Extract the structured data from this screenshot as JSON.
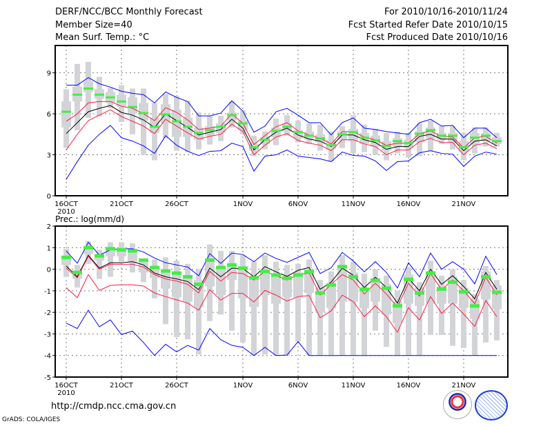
{
  "header": {
    "title": "DERF/NCC/BCC Monthly Forecast",
    "member_size": "Member Size=40",
    "variable": "Mean Surf. Temp.: °C",
    "period": "For 2010/10/16-2010/11/24",
    "fcst_started": "Fcst Started Refer Date 2010/10/15",
    "fcst_produced": "Fcst Produced Date 2010/10/16"
  },
  "footer": {
    "url": "http://cmdp.ncc.cma.gov.cn",
    "grads": "GrADS: COLA/IGES",
    "logos": [
      "BCC",
      "NCC"
    ]
  },
  "colors": {
    "mean": "#000000",
    "spread": "#ff1a40",
    "extreme": "#0000ff",
    "marker": "#44ee44",
    "box": "#d3d4d8"
  },
  "chart_data": [
    {
      "type": "line",
      "title": "Mean Surf. Temp.: °C",
      "ylabel": "°C",
      "ylim": [
        0,
        11
      ],
      "yticks": [
        "0",
        "3",
        "6",
        "9"
      ],
      "ytick_values": [
        0,
        3,
        6,
        9
      ],
      "xtick_labels": [
        "16OCT",
        "21OCT",
        "26OCT",
        "1NOV",
        "6NOV",
        "11NOV",
        "16NOV",
        "21NOV"
      ],
      "xtick_days": [
        0,
        5,
        10,
        16,
        21,
        26,
        31,
        36
      ],
      "year_label": "2010",
      "days": 40,
      "series": [
        {
          "name": "ensemble-mean",
          "color": "#000000",
          "values": [
            4.55,
            5.35,
            6.15,
            6.4,
            6.6,
            6.1,
            5.9,
            5.55,
            5.0,
            6.0,
            5.5,
            5.0,
            4.45,
            4.65,
            4.85,
            5.6,
            4.95,
            3.35,
            4.1,
            4.65,
            4.95,
            4.45,
            4.15,
            4.0,
            3.6,
            4.45,
            4.45,
            4.1,
            3.9,
            3.4,
            3.6,
            3.6,
            4.35,
            4.5,
            4.15,
            4.15,
            3.3,
            4.0,
            4.1,
            3.65
          ]
        },
        {
          "name": "spread-upper",
          "color": "#ff1a40",
          "values": [
            5.45,
            6.0,
            6.8,
            6.9,
            6.9,
            6.55,
            6.4,
            6.0,
            5.5,
            6.45,
            6.1,
            5.55,
            4.85,
            4.95,
            5.1,
            6.0,
            5.3,
            3.75,
            4.4,
            5.05,
            5.35,
            4.75,
            4.45,
            4.2,
            3.8,
            4.7,
            4.7,
            4.3,
            4.1,
            3.7,
            3.85,
            3.85,
            4.55,
            4.75,
            4.35,
            4.3,
            3.5,
            4.25,
            4.35,
            3.85
          ]
        },
        {
          "name": "spread-lower",
          "color": "#ff1a40",
          "values": [
            3.35,
            4.5,
            5.5,
            5.9,
            6.3,
            5.8,
            5.45,
            5.1,
            4.55,
            5.6,
            5.1,
            4.6,
            4.15,
            4.35,
            4.5,
            5.25,
            4.7,
            3.0,
            3.7,
            4.3,
            4.55,
            4.05,
            3.85,
            3.7,
            3.3,
            4.1,
            4.1,
            3.8,
            3.6,
            3.0,
            3.35,
            3.35,
            3.95,
            4.2,
            3.9,
            3.9,
            3.0,
            3.7,
            3.85,
            3.45
          ]
        },
        {
          "name": "max",
          "color": "#0000ff",
          "values": [
            8.1,
            8.1,
            8.65,
            8.2,
            7.95,
            7.65,
            7.5,
            7.4,
            6.8,
            7.6,
            7.2,
            6.9,
            5.85,
            5.85,
            6.05,
            6.95,
            6.2,
            4.65,
            5.1,
            6.15,
            6.4,
            5.9,
            5.35,
            5.35,
            4.45,
            5.35,
            5.7,
            4.95,
            4.85,
            4.7,
            4.6,
            4.5,
            5.35,
            5.6,
            5.1,
            5.15,
            4.25,
            4.95,
            4.95,
            4.25
          ]
        },
        {
          "name": "min",
          "color": "#0000ff",
          "values": [
            1.2,
            2.5,
            3.7,
            4.5,
            5.15,
            4.25,
            4.0,
            3.65,
            3.1,
            4.4,
            3.7,
            3.25,
            2.95,
            3.25,
            3.3,
            3.85,
            3.6,
            1.8,
            2.9,
            3.0,
            3.35,
            2.9,
            2.8,
            2.7,
            2.5,
            3.2,
            2.95,
            2.9,
            2.55,
            1.85,
            2.5,
            2.55,
            3.15,
            3.3,
            3.1,
            3.05,
            2.15,
            2.9,
            3.2,
            3.05
          ]
        }
      ],
      "markers": [
        6.15,
        7.4,
        7.85,
        7.4,
        7.2,
        6.9,
        6.5,
        6.05,
        5.05,
        5.95,
        5.45,
        5.05,
        4.6,
        4.8,
        5.05,
        5.9,
        5.3,
        3.55,
        4.1,
        4.75,
        5.05,
        4.65,
        4.4,
        4.2,
        3.7,
        4.5,
        4.65,
        4.25,
        4.05,
        3.65,
        4.0,
        3.85,
        4.55,
        4.8,
        4.4,
        4.4,
        3.55,
        4.25,
        4.4,
        4.0
      ],
      "boxes": {
        "outer_min": [
          3.5,
          4.8,
          5.7,
          5.8,
          6.4,
          5.4,
          4.5,
          3.0,
          2.6,
          4.2,
          3.3,
          3.2,
          3.4,
          3.75,
          4.0,
          5.0,
          4.5,
          2.9,
          3.4,
          3.7,
          4.4,
          3.9,
          3.8,
          3.3,
          2.5,
          3.5,
          3.1,
          3.2,
          3.0,
          2.6,
          3.1,
          2.8,
          2.9,
          3.3,
          3.8,
          3.4,
          2.6,
          3.1,
          3.6,
          3.6
        ],
        "outer_max": [
          7.8,
          9.65,
          9.8,
          8.7,
          7.9,
          8.1,
          7.85,
          7.85,
          6.8,
          7.45,
          7.3,
          6.95,
          6.1,
          5.85,
          5.85,
          6.9,
          6.25,
          4.4,
          4.7,
          5.65,
          5.9,
          5.5,
          5.3,
          5.2,
          4.7,
          5.1,
          5.9,
          5.2,
          4.9,
          4.6,
          4.7,
          4.6,
          5.3,
          5.5,
          5.1,
          5.1,
          4.6,
          5.0,
          5.0,
          4.6
        ],
        "inner_min": [
          5.0,
          6.9,
          7.6,
          7.1,
          6.8,
          6.5,
          6.0,
          5.5,
          4.6,
          5.3,
          4.3,
          4.3,
          4.1,
          4.4,
          4.6,
          5.5,
          4.8,
          3.3,
          3.8,
          4.3,
          4.7,
          4.2,
          4.1,
          3.9,
          3.4,
          4.1,
          4.0,
          3.8,
          3.6,
          3.3,
          3.6,
          3.5,
          3.9,
          4.2,
          4.1,
          3.9,
          3.2,
          3.8,
          4.0,
          3.8
        ],
        "inner_max": [
          6.9,
          8.0,
          8.4,
          7.8,
          7.6,
          7.4,
          7.2,
          6.8,
          5.7,
          6.7,
          6.3,
          5.7,
          5.0,
          5.1,
          5.3,
          6.1,
          5.5,
          3.8,
          4.3,
          5.0,
          5.3,
          4.8,
          4.7,
          4.5,
          4.1,
          4.7,
          4.9,
          4.6,
          4.4,
          4.0,
          4.2,
          4.1,
          4.7,
          5.0,
          4.6,
          4.6,
          4.0,
          4.6,
          4.6,
          4.3
        ]
      }
    },
    {
      "type": "line",
      "title": "Prec.: log(mm/d)",
      "ylabel": "log(mm/d)",
      "ylim": [
        -5,
        2
      ],
      "yticks": [
        "-5",
        "-4",
        "-3",
        "-2",
        "-1",
        "0",
        "1",
        "2"
      ],
      "ytick_values": [
        -5,
        -4,
        -3,
        -2,
        -1,
        0,
        1,
        2
      ],
      "xtick_labels": [
        "16OCT",
        "21OCT",
        "26OCT",
        "1NOV",
        "6NOV",
        "11NOV",
        "16NOV",
        "21NOV"
      ],
      "xtick_days": [
        0,
        5,
        10,
        16,
        21,
        26,
        31,
        36
      ],
      "year_label": "2010",
      "days": 40,
      "series": [
        {
          "name": "ensemble-mean",
          "color": "#000000",
          "values": [
            0.15,
            -0.35,
            0.65,
            0.05,
            0.3,
            0.3,
            0.35,
            0.2,
            -0.18,
            -0.35,
            -0.45,
            -0.57,
            -0.95,
            0.05,
            -0.35,
            0.05,
            0.03,
            -0.35,
            0.12,
            -0.12,
            -0.33,
            -0.05,
            0.08,
            -0.93,
            -0.6,
            0.05,
            -0.28,
            -0.85,
            -0.37,
            -0.85,
            -1.57,
            -0.42,
            -1.0,
            0.0,
            -0.7,
            -0.3,
            -0.8,
            -1.37,
            -0.15,
            -0.93
          ]
        },
        {
          "name": "spread-upper",
          "color": "#ff1a40",
          "values": [
            0.05,
            -0.4,
            0.6,
            0.0,
            0.23,
            0.23,
            0.23,
            0.1,
            -0.25,
            -0.45,
            -0.55,
            -0.7,
            -1.1,
            -0.1,
            -0.55,
            -0.15,
            -0.2,
            -0.5,
            -0.1,
            -0.3,
            -0.5,
            -0.25,
            -0.18,
            -1.2,
            -0.7,
            -0.25,
            -0.5,
            -1.15,
            -0.65,
            -1.15,
            -1.75,
            -0.65,
            -1.25,
            -0.2,
            -0.95,
            -0.5,
            -1.0,
            -1.6,
            -0.37,
            -1.2
          ]
        },
        {
          "name": "spread-lower",
          "color": "#ff1a40",
          "values": [
            -0.85,
            -1.32,
            -0.25,
            -0.98,
            -0.75,
            -0.72,
            -0.72,
            -0.78,
            -1.1,
            -1.27,
            -1.42,
            -1.57,
            -1.9,
            -0.95,
            -1.43,
            -1.12,
            -1.12,
            -1.52,
            -0.98,
            -1.2,
            -1.48,
            -1.27,
            -1.22,
            -2.25,
            -1.93,
            -1.2,
            -1.5,
            -2.2,
            -1.7,
            -2.2,
            -2.92,
            -1.78,
            -2.35,
            -1.27,
            -2.05,
            -1.57,
            -2.08,
            -2.65,
            -1.45,
            -2.2
          ]
        },
        {
          "name": "max",
          "color": "#0000ff",
          "values": [
            0.85,
            0.28,
            1.25,
            0.65,
            0.9,
            0.95,
            0.95,
            0.8,
            0.52,
            0.3,
            0.2,
            0.1,
            -0.3,
            0.72,
            0.27,
            0.75,
            0.68,
            0.35,
            0.75,
            0.5,
            0.32,
            0.55,
            0.78,
            -0.2,
            0.07,
            0.78,
            0.38,
            -0.12,
            0.35,
            -0.15,
            -0.87,
            0.3,
            -0.35,
            0.75,
            0.0,
            0.35,
            0.0,
            -0.68,
            0.6,
            -0.25
          ]
        },
        {
          "name": "min",
          "color": "#0000ff",
          "values": [
            -2.5,
            -2.75,
            -1.9,
            -2.67,
            -2.35,
            -3.03,
            -2.87,
            -3.4,
            -4.0,
            -3.48,
            -3.83,
            -3.53,
            -3.75,
            -2.75,
            -3.27,
            -3.53,
            -3.62,
            -4.0,
            -3.62,
            -4.0,
            -3.98,
            -3.35,
            -4.0,
            -4.0,
            -4.0,
            -4.0,
            -4.0,
            -4.0,
            -4.0,
            -4.0,
            -4.0,
            -4.0,
            -4.0,
            -4.0,
            -4.0,
            -4.0,
            -4.0,
            -4.0,
            -4.0,
            -4.0
          ]
        }
      ],
      "markers": [
        0.55,
        -0.15,
        1.0,
        0.62,
        0.95,
        0.9,
        0.85,
        0.42,
        0.08,
        -0.08,
        -0.18,
        -0.35,
        -0.7,
        0.42,
        0.08,
        0.2,
        0.05,
        -0.4,
        -0.1,
        -0.27,
        -0.42,
        -0.27,
        -0.12,
        -1.1,
        -0.73,
        0.12,
        -0.35,
        -0.93,
        -0.52,
        -0.88,
        -1.7,
        -0.47,
        -1.1,
        -0.18,
        -0.92,
        -0.6,
        -1.05,
        -1.7,
        -0.35,
        -1.07
      ],
      "boxes": {
        "outer_min": [
          -0.35,
          -0.85,
          0.25,
          -0.45,
          -0.35,
          0.35,
          -0.15,
          -0.6,
          -1.35,
          -2.55,
          -3.15,
          -3.25,
          -3.95,
          -2.4,
          -2.1,
          -2.85,
          -3.4,
          -4.0,
          -3.95,
          -4.0,
          -4.0,
          -3.35,
          -4.0,
          -4.0,
          -4.0,
          -4.0,
          -4.0,
          -4.0,
          -2.85,
          -3.6,
          -4.0,
          -4.0,
          -4.0,
          -3.05,
          -3.05,
          -3.55,
          -3.65,
          -4.0,
          -3.4,
          -3.3
        ],
        "outer_max": [
          0.95,
          0.2,
          1.3,
          0.9,
          1.25,
          1.25,
          1.2,
          0.5,
          0.45,
          0.55,
          0.4,
          0.25,
          0.0,
          1.15,
          0.85,
          0.85,
          0.65,
          0.35,
          0.65,
          0.35,
          0.2,
          0.25,
          0.45,
          -0.5,
          -0.1,
          0.65,
          0.35,
          -0.2,
          0.0,
          -0.3,
          -1.0,
          0.1,
          -0.6,
          0.4,
          -0.3,
          0.0,
          -0.5,
          -1.15,
          0.15,
          -0.5
        ],
        "inner_min": [
          0.2,
          -0.45,
          0.7,
          0.4,
          0.6,
          0.6,
          0.3,
          -0.15,
          -0.4,
          -0.9,
          -1.3,
          -1.5,
          -1.75,
          -0.8,
          -1.2,
          -0.5,
          -1.35,
          -1.75,
          -1.2,
          -1.6,
          -1.3,
          -1.3,
          -1.1,
          -2.0,
          -1.8,
          -1.5,
          -1.5,
          -1.8,
          -1.5,
          -2.1,
          -2.5,
          -1.6,
          -1.7,
          -1.6,
          -1.6,
          -1.6,
          -1.8,
          -2.3,
          -1.4,
          -1.85
        ],
        "inner_max": [
          0.6,
          -0.05,
          1.05,
          0.7,
          1.0,
          1.0,
          0.95,
          0.45,
          0.1,
          -0.05,
          -0.15,
          -0.3,
          -0.5,
          0.5,
          0.1,
          0.25,
          0.1,
          -0.3,
          -0.05,
          -0.2,
          -0.3,
          -0.15,
          0.0,
          -0.85,
          -0.7,
          0.15,
          -0.15,
          -0.9,
          -0.4,
          -0.7,
          -1.5,
          -0.25,
          -0.85,
          -0.1,
          -0.8,
          -0.35,
          -0.85,
          -1.4,
          -0.1,
          -0.75
        ]
      }
    }
  ]
}
